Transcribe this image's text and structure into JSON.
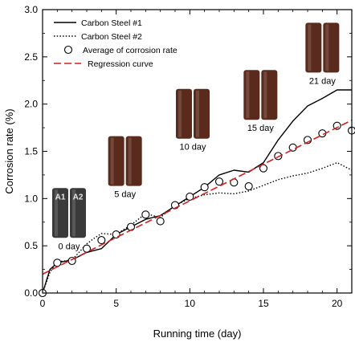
{
  "chart_data": {
    "type": "line",
    "xlabel": "Running time  (day)",
    "ylabel": "Corrosion rate (%)",
    "xlim": [
      0,
      21
    ],
    "ylim": [
      0.0,
      3.0
    ],
    "x_ticks": [
      0,
      5,
      10,
      15,
      20
    ],
    "x_tick_labels": [
      "0",
      "5",
      "10",
      "15",
      "20"
    ],
    "y_ticks": [
      0.0,
      0.5,
      1.0,
      1.5,
      2.0,
      2.5,
      3.0
    ],
    "y_tick_labels": [
      "0.0",
      "0.5",
      "1.0",
      "1.5",
      "2.0",
      "2.5",
      "3.0"
    ],
    "legend_position": "top-left",
    "grid": false,
    "series": [
      {
        "name": "Carbon Steel  #1",
        "style": "solid",
        "color": "#000000",
        "x": [
          0,
          0.5,
          1,
          2,
          3,
          4,
          5,
          6,
          7,
          8,
          9,
          10,
          11,
          12,
          13,
          14,
          15,
          16,
          17,
          18,
          19,
          20,
          21
        ],
        "y": [
          0.0,
          0.25,
          0.32,
          0.35,
          0.43,
          0.47,
          0.62,
          0.7,
          0.78,
          0.82,
          0.92,
          1.02,
          1.12,
          1.25,
          1.3,
          1.28,
          1.38,
          1.62,
          1.82,
          1.98,
          2.06,
          2.15,
          2.15
        ]
      },
      {
        "name": "Carbon Steel  #2",
        "style": "dotted",
        "color": "#000000",
        "x": [
          0,
          0.5,
          1,
          2,
          3,
          3.5,
          4,
          5,
          6,
          7,
          8,
          9,
          10,
          11,
          12,
          13,
          14,
          15,
          16,
          17,
          18,
          19,
          20,
          21
        ],
        "y": [
          0.0,
          0.22,
          0.33,
          0.35,
          0.52,
          0.58,
          0.63,
          0.62,
          0.72,
          0.84,
          0.8,
          0.93,
          1.0,
          1.04,
          1.06,
          1.05,
          1.08,
          1.14,
          1.2,
          1.24,
          1.27,
          1.32,
          1.38,
          1.3
        ]
      },
      {
        "name": "Average of corrosion rate",
        "style": "marker-circle",
        "color": "#000000",
        "x": [
          0,
          1,
          2,
          3,
          4,
          5,
          6,
          7,
          8,
          9,
          10,
          11,
          12,
          13,
          14,
          15,
          16,
          17,
          18,
          19,
          20,
          21
        ],
        "y": [
          0.0,
          0.32,
          0.34,
          0.47,
          0.56,
          0.62,
          0.7,
          0.83,
          0.76,
          0.93,
          1.02,
          1.12,
          1.18,
          1.17,
          1.13,
          1.32,
          1.45,
          1.54,
          1.62,
          1.69,
          1.77,
          1.72
        ]
      },
      {
        "name": "Regression curve",
        "style": "dashed",
        "color": "#d42020",
        "x": [
          0,
          21
        ],
        "y": [
          0.2,
          1.83
        ]
      }
    ],
    "annotations": [
      {
        "label": "0 day",
        "x": 1.8,
        "y": 0.55,
        "rod_labels": [
          "A1",
          "A2"
        ]
      },
      {
        "label": "5 day",
        "x": 5.6,
        "y": 1.1,
        "rod_labels": [
          "",
          ""
        ]
      },
      {
        "label": "10 day",
        "x": 10.2,
        "y": 1.6,
        "rod_labels": [
          "",
          ""
        ]
      },
      {
        "label": "15 day",
        "x": 14.8,
        "y": 1.8,
        "rod_labels": [
          "",
          ""
        ]
      },
      {
        "label": "21 day",
        "x": 19.0,
        "y": 2.3,
        "rod_labels": [
          "",
          ""
        ]
      }
    ]
  },
  "colors": {
    "axis": "#000000",
    "regression": "#d42020",
    "rod_fresh": "#3a3a3a",
    "rod_rust": "#5a2a1c"
  }
}
